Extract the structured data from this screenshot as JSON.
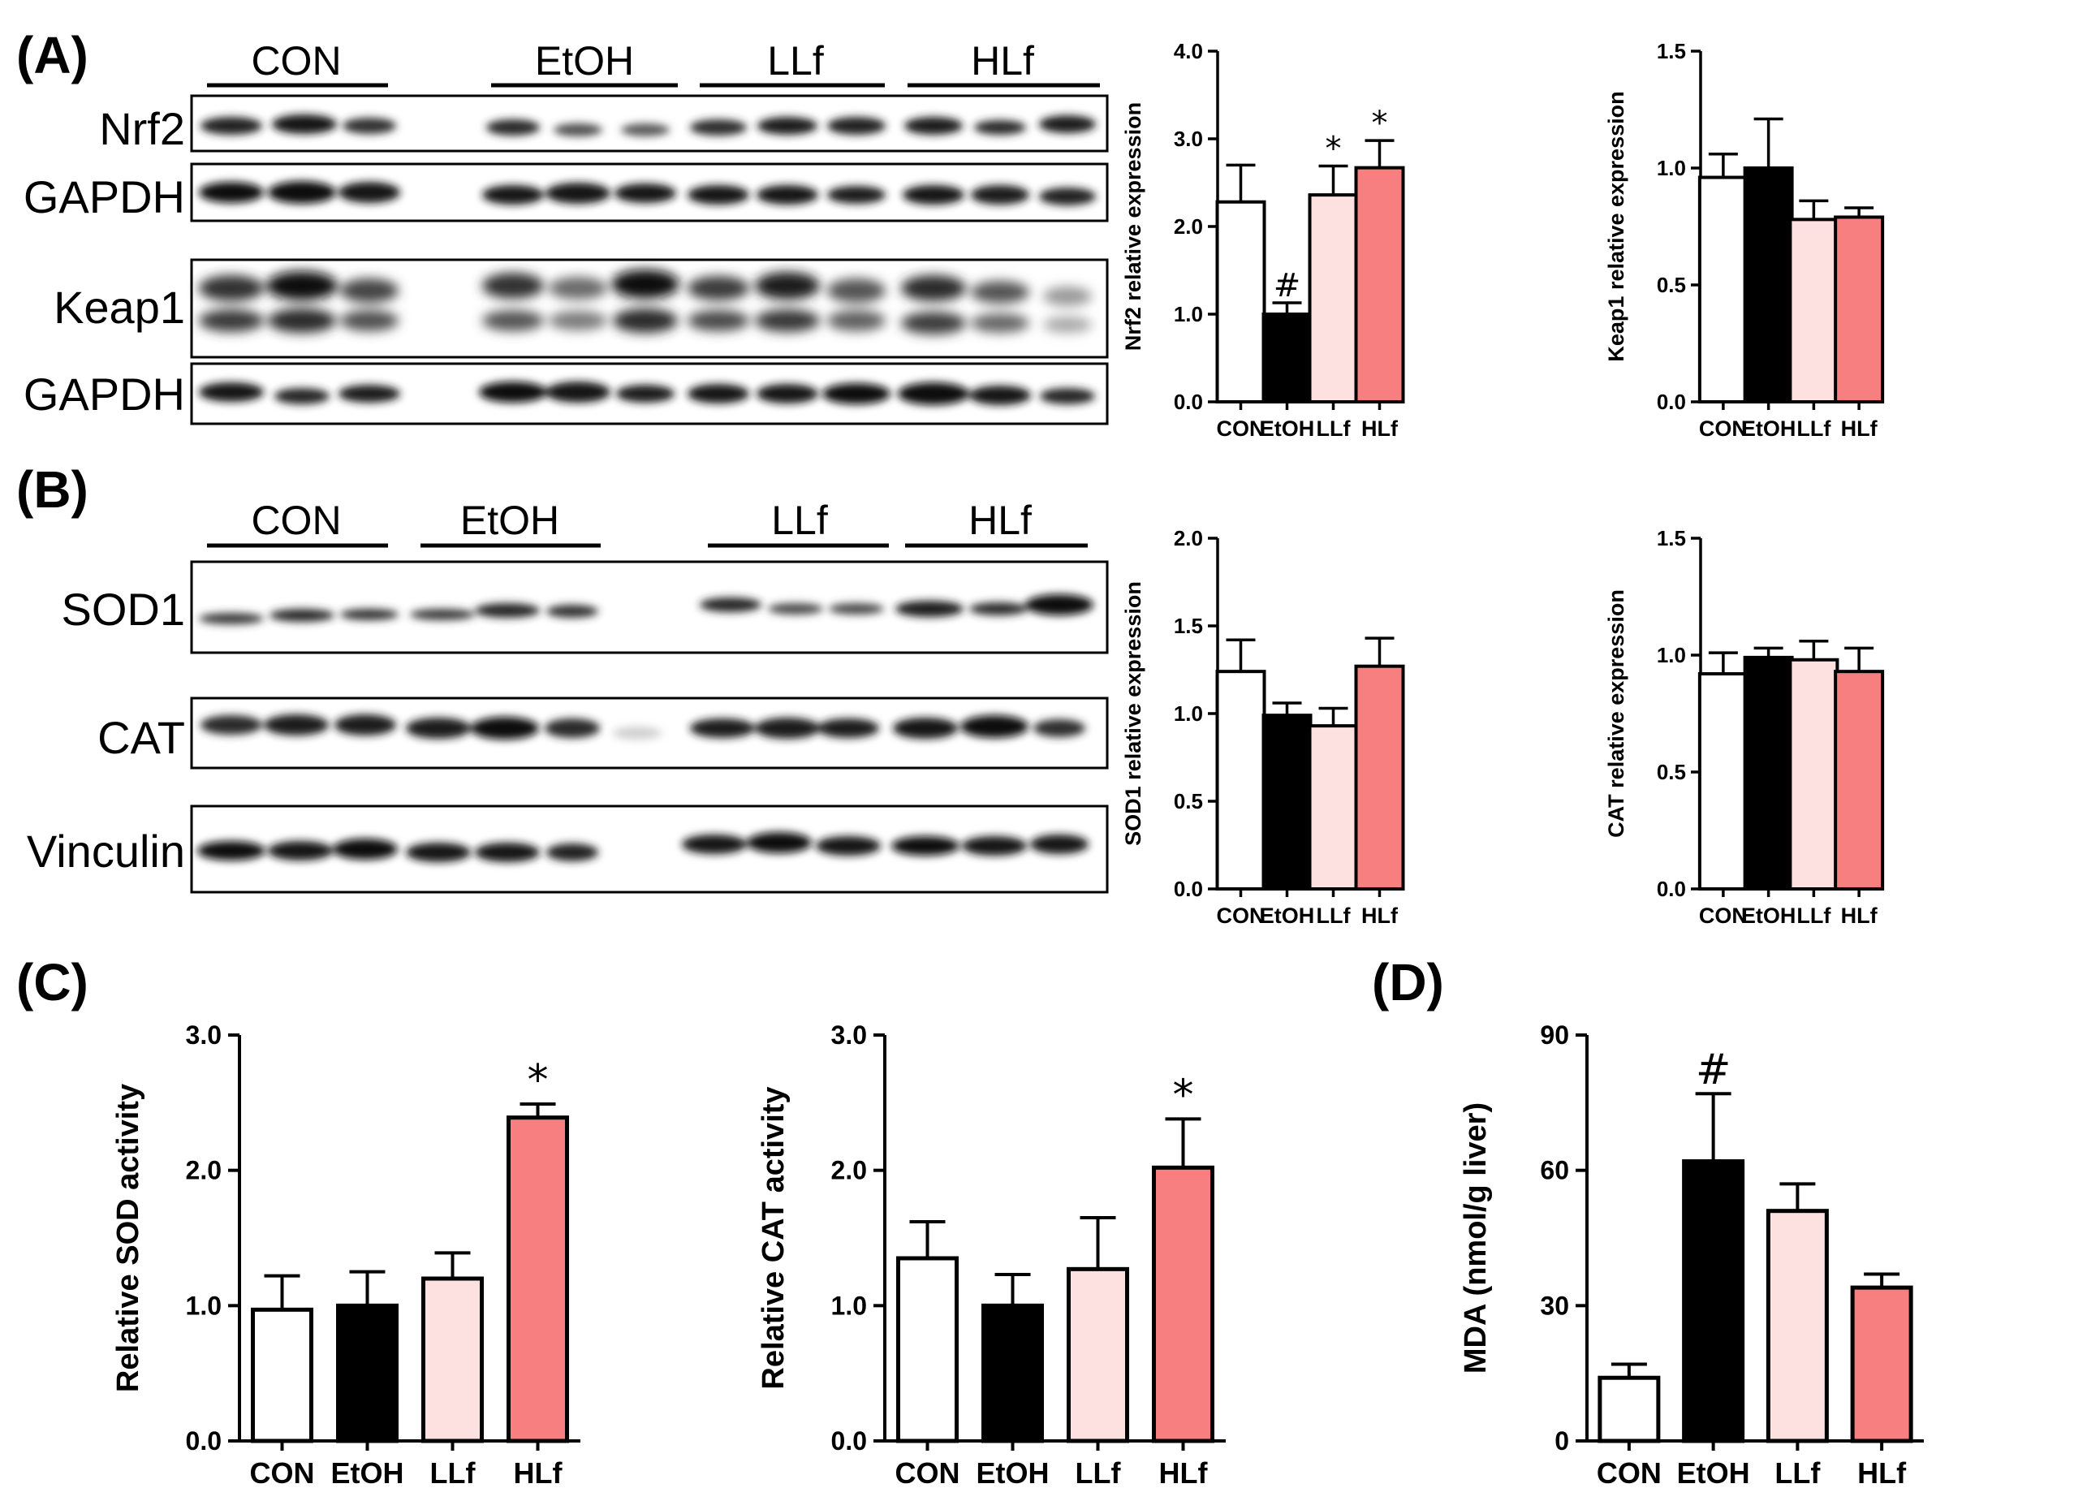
{
  "panels": {
    "A": "(A)",
    "B": "(B)",
    "C": "(C)",
    "D": "(D)"
  },
  "blots": {
    "A": {
      "groups": [
        "CON",
        "EtOH",
        "LLf",
        "HLf"
      ],
      "rows": [
        "Nrf2",
        "GAPDH",
        "Keap1",
        "GAPDH"
      ]
    },
    "B": {
      "groups": [
        "CON",
        "EtOH",
        "LLf",
        "HLf"
      ],
      "rows": [
        "SOD1",
        "CAT",
        "Vinculin"
      ]
    }
  },
  "colors": {
    "CON": "#ffffff",
    "EtOH": "#000000",
    "LLf": "#fde0e0",
    "HLf": "#f87f7f",
    "outline": "#000000"
  },
  "chart_data": [
    {
      "id": "nrf2",
      "type": "bar",
      "categories": [
        "CON",
        "EtOH",
        "LLf",
        "HLf"
      ],
      "values": [
        2.28,
        1.0,
        2.36,
        2.67
      ],
      "errors": [
        0.42,
        0.13,
        0.33,
        0.31
      ],
      "significance": [
        "",
        "#",
        "*",
        "*"
      ],
      "ylabel": "Nrf2 relative expression",
      "ylim": [
        0,
        4.0
      ],
      "yticks": [
        "0.0",
        "1.0",
        "2.0",
        "3.0",
        "4.0"
      ],
      "grid": false
    },
    {
      "id": "keap1",
      "type": "bar",
      "categories": [
        "CON",
        "EtOH",
        "LLf",
        "HLf"
      ],
      "values": [
        0.96,
        1.0,
        0.78,
        0.79
      ],
      "errors": [
        0.1,
        0.21,
        0.08,
        0.04
      ],
      "significance": [
        "",
        "",
        "",
        ""
      ],
      "ylabel": "Keap1 relative expression",
      "ylim": [
        0,
        1.5
      ],
      "yticks": [
        "0.0",
        "0.5",
        "1.0",
        "1.5"
      ],
      "grid": false
    },
    {
      "id": "sod1",
      "type": "bar",
      "categories": [
        "CON",
        "EtOH",
        "LLf",
        "HLf"
      ],
      "values": [
        1.24,
        0.99,
        0.93,
        1.27
      ],
      "errors": [
        0.18,
        0.07,
        0.1,
        0.16
      ],
      "significance": [
        "",
        "",
        "",
        ""
      ],
      "ylabel": "SOD1 relative expression",
      "ylim": [
        0,
        2.0
      ],
      "yticks": [
        "0.0",
        "0.5",
        "1.0",
        "1.5",
        "2.0"
      ],
      "grid": false
    },
    {
      "id": "cat",
      "type": "bar",
      "categories": [
        "CON",
        "EtOH",
        "LLf",
        "HLf"
      ],
      "values": [
        0.92,
        0.99,
        0.98,
        0.93
      ],
      "errors": [
        0.09,
        0.04,
        0.08,
        0.1
      ],
      "significance": [
        "",
        "",
        "",
        ""
      ],
      "ylabel": "CAT relative expression",
      "ylim": [
        0,
        1.5
      ],
      "yticks": [
        "0.0",
        "0.5",
        "1.0",
        "1.5"
      ],
      "grid": false
    },
    {
      "id": "sod_activity",
      "type": "bar",
      "categories": [
        "CON",
        "EtOH",
        "LLf",
        "HLf"
      ],
      "values": [
        0.97,
        1.0,
        1.2,
        2.39
      ],
      "errors": [
        0.25,
        0.25,
        0.19,
        0.1
      ],
      "significance": [
        "",
        "",
        "",
        "*"
      ],
      "ylabel": "Relative SOD activity",
      "ylim": [
        0,
        3.0
      ],
      "yticks": [
        "0.0",
        "1.0",
        "2.0",
        "3.0"
      ],
      "grid": false
    },
    {
      "id": "cat_activity",
      "type": "bar",
      "categories": [
        "CON",
        "EtOH",
        "LLf",
        "HLf"
      ],
      "values": [
        1.35,
        1.0,
        1.27,
        2.02
      ],
      "errors": [
        0.27,
        0.23,
        0.38,
        0.36
      ],
      "significance": [
        "",
        "",
        "",
        "*"
      ],
      "ylabel": "Relative CAT activity",
      "ylim": [
        0,
        3.0
      ],
      "yticks": [
        "0.0",
        "1.0",
        "2.0",
        "3.0"
      ],
      "grid": false
    },
    {
      "id": "mda",
      "type": "bar",
      "categories": [
        "CON",
        "EtOH",
        "LLf",
        "HLf"
      ],
      "values": [
        14,
        62,
        51,
        34
      ],
      "errors": [
        3,
        15,
        6,
        3
      ],
      "significance": [
        "",
        "#",
        "",
        ""
      ],
      "ylabel": "MDA (nmol/g liver)",
      "ylim": [
        0,
        90
      ],
      "yticks": [
        "0",
        "30",
        "60",
        "90"
      ],
      "grid": false
    }
  ]
}
